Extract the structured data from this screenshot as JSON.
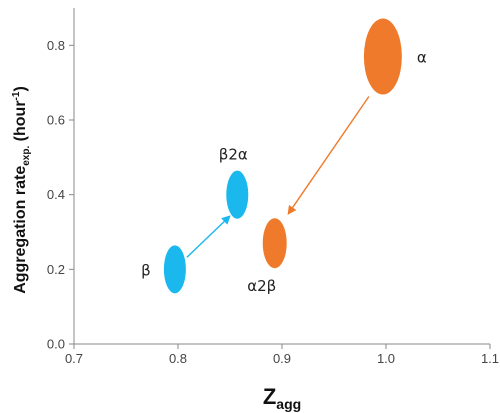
{
  "chart_data": {
    "type": "scatter",
    "title": "",
    "xlabel": {
      "main": "Z",
      "sub": "agg"
    },
    "ylabel": {
      "main": "Aggregation rate",
      "sub": "exp.",
      "unit_prefix": " (hour",
      "unit_sup": "-1",
      "unit_suffix": ")"
    },
    "xlim": [
      0.7,
      1.1
    ],
    "ylim": [
      0.0,
      0.9
    ],
    "grid": false,
    "x_ticks": [
      "0.7",
      "0.8",
      "0.9",
      "1.0",
      "1.1"
    ],
    "y_ticks": [
      "0.0",
      "0.2",
      "0.4",
      "0.6",
      "0.8"
    ],
    "colors": {
      "blue": "#1AB8EC",
      "orange": "#F07A2C",
      "axis": "#888888"
    },
    "points": [
      {
        "label": "α",
        "x": 0.997,
        "y": 0.77,
        "color": "orange"
      },
      {
        "label": "α2β",
        "x": 0.893,
        "y": 0.27,
        "color": "orange"
      },
      {
        "label": "β2α",
        "x": 0.857,
        "y": 0.4,
        "color": "blue"
      },
      {
        "label": "β",
        "x": 0.797,
        "y": 0.2,
        "color": "blue"
      }
    ],
    "arrows": [
      {
        "from": "α",
        "to": "α2β",
        "color": "orange"
      },
      {
        "from": "β",
        "to": "β2α",
        "color": "blue"
      }
    ]
  }
}
